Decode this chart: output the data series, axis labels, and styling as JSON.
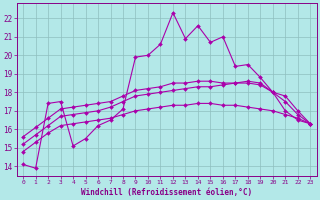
{
  "xlabel": "Windchill (Refroidissement éolien,°C)",
  "background_color": "#b3e8e8",
  "grid_color": "#8fbfbf",
  "line_color": "#aa00aa",
  "xlim": [
    -0.5,
    23.5
  ],
  "ylim": [
    13.5,
    22.8
  ],
  "xticks": [
    0,
    1,
    2,
    3,
    4,
    5,
    6,
    7,
    8,
    9,
    10,
    11,
    12,
    13,
    14,
    15,
    16,
    17,
    18,
    19,
    20,
    21,
    22,
    23
  ],
  "yticks": [
    14,
    15,
    16,
    17,
    18,
    19,
    20,
    21,
    22
  ],
  "series": [
    {
      "x": [
        0,
        1,
        2,
        3,
        4,
        5,
        6,
        7,
        8,
        9,
        10,
        11,
        12,
        13,
        14,
        15,
        16,
        17,
        18,
        19,
        20,
        21,
        22,
        23
      ],
      "y": [
        14.1,
        13.9,
        17.4,
        17.5,
        15.1,
        15.5,
        16.2,
        16.5,
        17.1,
        19.9,
        20.0,
        20.6,
        22.3,
        20.9,
        21.6,
        20.7,
        21.0,
        19.4,
        19.5,
        18.8,
        18.0,
        17.0,
        16.5,
        16.3
      ]
    },
    {
      "x": [
        0,
        1,
        2,
        3,
        4,
        5,
        6,
        7,
        8,
        9,
        10,
        11,
        12,
        13,
        14,
        15,
        16,
        17,
        18,
        19,
        20,
        21,
        22,
        23
      ],
      "y": [
        14.8,
        15.3,
        15.8,
        16.2,
        16.3,
        16.4,
        16.5,
        16.6,
        16.8,
        17.0,
        17.1,
        17.2,
        17.3,
        17.3,
        17.4,
        17.4,
        17.3,
        17.3,
        17.2,
        17.1,
        17.0,
        16.8,
        16.6,
        16.3
      ]
    },
    {
      "x": [
        0,
        1,
        2,
        3,
        4,
        5,
        6,
        7,
        8,
        9,
        10,
        11,
        12,
        13,
        14,
        15,
        16,
        17,
        18,
        19,
        20,
        21,
        22,
        23
      ],
      "y": [
        15.2,
        15.7,
        16.2,
        16.7,
        16.8,
        16.9,
        17.0,
        17.2,
        17.5,
        17.8,
        17.9,
        18.0,
        18.1,
        18.2,
        18.3,
        18.3,
        18.4,
        18.5,
        18.6,
        18.5,
        18.0,
        17.5,
        16.8,
        16.3
      ]
    },
    {
      "x": [
        0,
        1,
        2,
        3,
        4,
        5,
        6,
        7,
        8,
        9,
        10,
        11,
        12,
        13,
        14,
        15,
        16,
        17,
        18,
        19,
        20,
        21,
        22,
        23
      ],
      "y": [
        15.6,
        16.1,
        16.6,
        17.1,
        17.2,
        17.3,
        17.4,
        17.5,
        17.8,
        18.1,
        18.2,
        18.3,
        18.5,
        18.5,
        18.6,
        18.6,
        18.5,
        18.5,
        18.5,
        18.4,
        18.0,
        17.8,
        17.0,
        16.3
      ]
    }
  ]
}
